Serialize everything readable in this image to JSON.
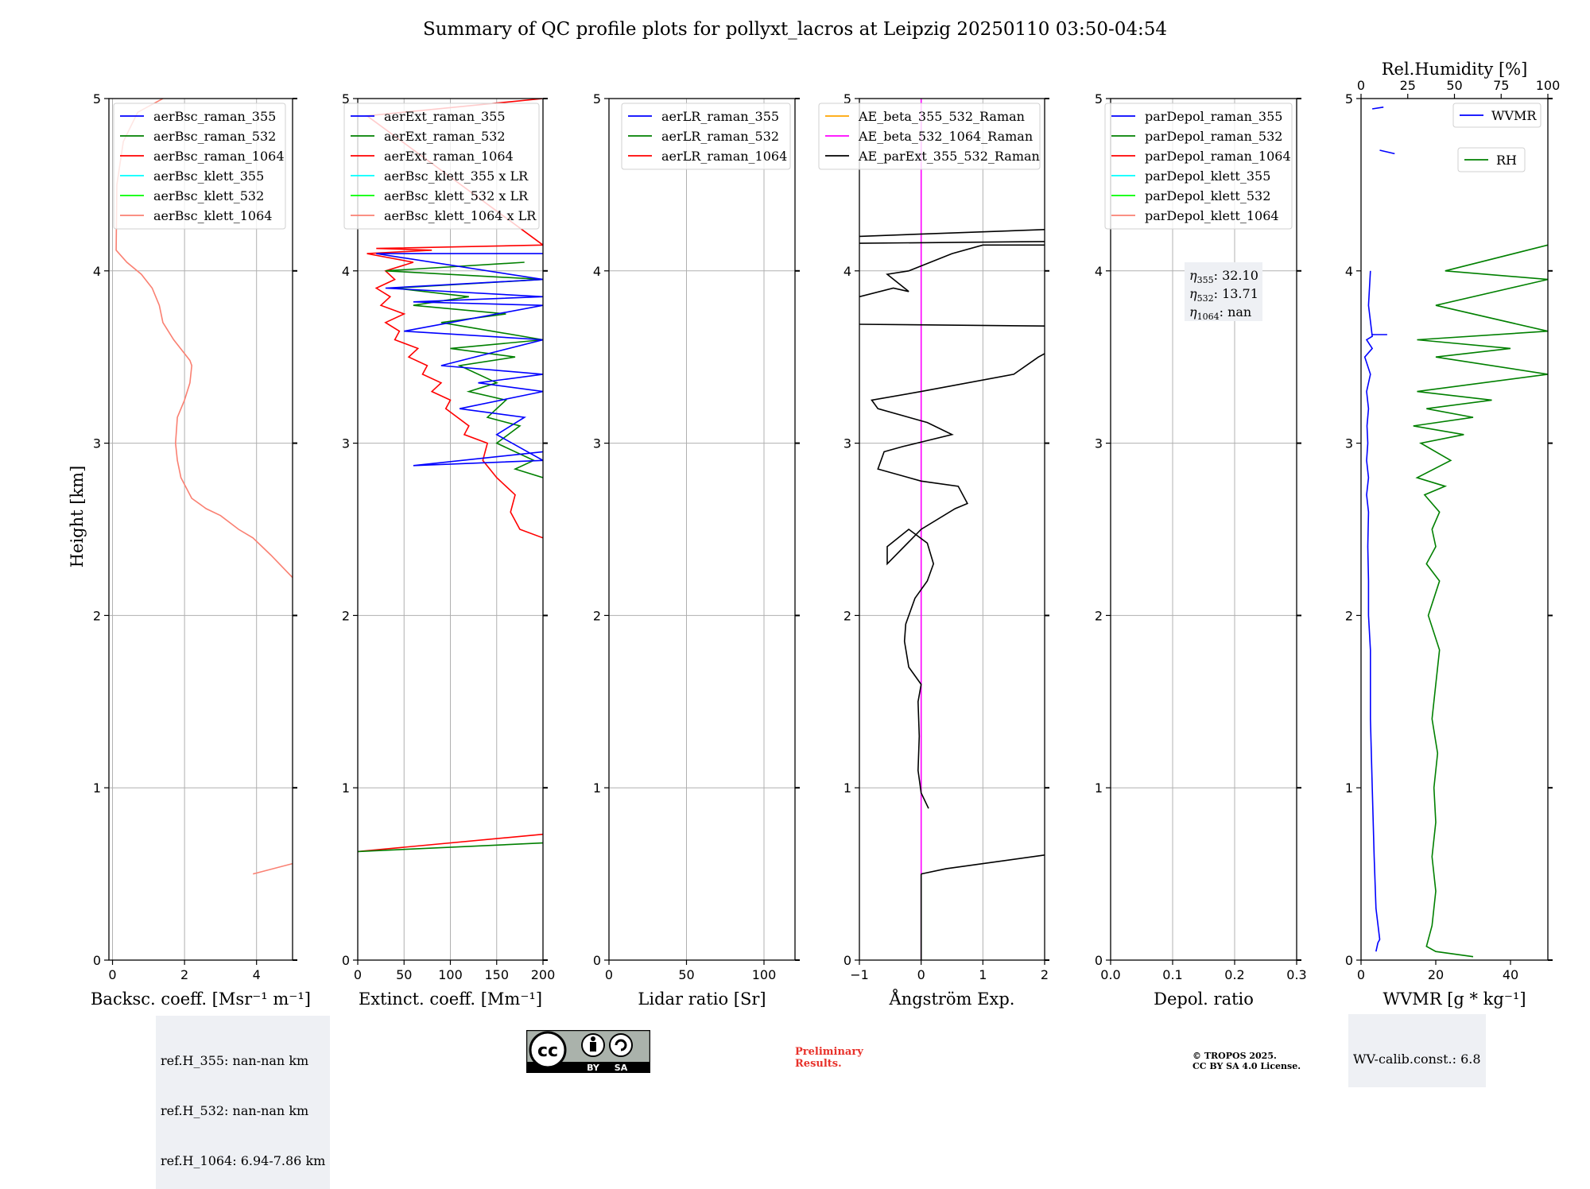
{
  "title": "Summary of QC profile plots for pollyxt_lacros at Leipzig 20250110 03:50-04:54",
  "chart_data": [
    {
      "type": "line",
      "xlabel": "Backsc. coeff. [Msr⁻¹ m⁻¹]",
      "ylabel": "Height [km]",
      "xlim": [
        -0.1,
        5
      ],
      "ylim": [
        0,
        5
      ],
      "xticks": [
        0,
        2,
        4
      ],
      "yticks": [
        0,
        1,
        2,
        3,
        4,
        5
      ],
      "grid": true,
      "legend_position": "top-right",
      "legend": [
        {
          "name": "aerBsc_raman_355",
          "color": "#0000ff"
        },
        {
          "name": "aerBsc_raman_532",
          "color": "#008000"
        },
        {
          "name": "aerBsc_raman_1064",
          "color": "#ff0000"
        },
        {
          "name": "aerBsc_klett_355",
          "color": "#00ffff"
        },
        {
          "name": "aerBsc_klett_532",
          "color": "#00ff00"
        },
        {
          "name": "aerBsc_klett_1064",
          "color": "#fa8072"
        }
      ],
      "series": [
        {
          "name": "aerBsc_klett_1064",
          "color": "#fa8072",
          "x": [
            5.0,
            4.4,
            3.9,
            3.5,
            3.0,
            2.6,
            2.2,
            1.9,
            1.8,
            1.75,
            1.8,
            2.0,
            2.15,
            2.2,
            2.15,
            1.7,
            1.4,
            1.3,
            1.1,
            0.8,
            0.4,
            0.1,
            0.12,
            0.3,
            0.7,
            1.4
          ],
          "y": [
            2.22,
            2.35,
            2.45,
            2.5,
            2.58,
            2.62,
            2.68,
            2.8,
            2.9,
            3.0,
            3.15,
            3.25,
            3.35,
            3.45,
            3.48,
            3.6,
            3.7,
            3.8,
            3.9,
            3.98,
            4.05,
            4.12,
            4.5,
            4.75,
            4.92,
            5.0
          ]
        },
        {
          "name": "aerBsc_klett_1064",
          "color": "#fa8072",
          "x": [
            3.9,
            5.0
          ],
          "y": [
            0.5,
            0.56
          ]
        }
      ]
    },
    {
      "type": "line",
      "xlabel": "Extinct. coeff. [Mm⁻¹]",
      "xlim": [
        0,
        200
      ],
      "ylim": [
        0,
        5
      ],
      "xticks": [
        0,
        50,
        100,
        150,
        200
      ],
      "yticks": [
        0,
        1,
        2,
        3,
        4,
        5
      ],
      "grid": true,
      "legend_position": "top-left",
      "legend": [
        {
          "name": "aerExt_raman_355",
          "color": "#0000ff"
        },
        {
          "name": "aerExt_raman_532",
          "color": "#008000"
        },
        {
          "name": "aerExt_raman_1064",
          "color": "#ff0000"
        },
        {
          "name": "aerBsc_klett_355 x LR",
          "color": "#00ffff"
        },
        {
          "name": "aerBsc_klett_532 x LR",
          "color": "#00ff00"
        },
        {
          "name": "aerBsc_klett_1064 x LR",
          "color": "#fa8072"
        }
      ],
      "series": [
        {
          "name": "aerExt_raman_1064",
          "color": "#ff0000",
          "x": [
            200,
            175,
            165,
            170,
            150,
            135,
            140,
            115,
            120,
            95,
            100,
            80,
            90,
            70,
            75,
            55,
            65,
            40,
            45,
            30,
            50,
            25,
            35,
            20,
            40,
            30,
            60,
            10,
            80,
            20,
            200,
            10,
            200
          ],
          "y": [
            2.45,
            2.5,
            2.6,
            2.7,
            2.8,
            2.9,
            3.0,
            3.05,
            3.1,
            3.2,
            3.25,
            3.3,
            3.35,
            3.4,
            3.45,
            3.5,
            3.55,
            3.6,
            3.65,
            3.7,
            3.75,
            3.8,
            3.85,
            3.9,
            3.95,
            4.0,
            4.05,
            4.1,
            4.12,
            4.13,
            4.15,
            4.9,
            5.0
          ]
        },
        {
          "name": "aerExt_raman_1064",
          "color": "#ff0000",
          "x": [
            0,
            200
          ],
          "y": [
            0.63,
            0.73
          ]
        },
        {
          "name": "aerExt_raman_532",
          "color": "#008000",
          "x": [
            200,
            170,
            190,
            150,
            175,
            140,
            160,
            120,
            150,
            110,
            170,
            100,
            200,
            90,
            160,
            60,
            120,
            40,
            200,
            30,
            180
          ],
          "y": [
            2.8,
            2.85,
            2.9,
            3.0,
            3.1,
            3.15,
            3.25,
            3.3,
            3.35,
            3.45,
            3.5,
            3.55,
            3.6,
            3.7,
            3.75,
            3.8,
            3.85,
            3.9,
            3.95,
            4.0,
            4.05
          ]
        },
        {
          "name": "aerExt_raman_532",
          "color": "#008000",
          "x": [
            0,
            200
          ],
          "y": [
            0.63,
            0.68
          ]
        },
        {
          "name": "aerExt_raman_355",
          "color": "#0000ff",
          "x": [
            200,
            60,
            200,
            150,
            180,
            110,
            200,
            130,
            200,
            90,
            200,
            50,
            200,
            60,
            200,
            30,
            200,
            20,
            200
          ],
          "y": [
            2.95,
            2.87,
            2.9,
            3.05,
            3.15,
            3.2,
            3.3,
            3.35,
            3.4,
            3.45,
            3.6,
            3.65,
            3.8,
            3.82,
            3.85,
            3.9,
            3.95,
            4.1,
            4.1
          ]
        }
      ]
    },
    {
      "type": "line",
      "xlabel": "Lidar ratio [Sr]",
      "xlim": [
        0,
        120
      ],
      "ylim": [
        0,
        5
      ],
      "xticks": [
        0,
        50,
        100
      ],
      "yticks": [
        0,
        1,
        2,
        3,
        4,
        5
      ],
      "grid": true,
      "legend_position": "top-right",
      "legend": [
        {
          "name": "aerLR_raman_355",
          "color": "#0000ff"
        },
        {
          "name": "aerLR_raman_532",
          "color": "#008000"
        },
        {
          "name": "aerLR_raman_1064",
          "color": "#ff0000"
        }
      ],
      "series": []
    },
    {
      "type": "line",
      "xlabel": "Ångström Exp.",
      "xlim": [
        -1,
        2
      ],
      "ylim": [
        0,
        5
      ],
      "xticks": [
        -1,
        0,
        1,
        2
      ],
      "xticklabels": [
        "−1",
        "0",
        "1",
        "2"
      ],
      "yticks": [
        0,
        1,
        2,
        3,
        4,
        5
      ],
      "grid": true,
      "legend_position": "top-right",
      "legend": [
        {
          "name": "AE_beta_355_532_Raman",
          "color": "#ffa500"
        },
        {
          "name": "AE_beta_532_1064_Raman",
          "color": "#ff00ff"
        },
        {
          "name": "AE_parExt_355_532_Raman",
          "color": "#000000"
        }
      ],
      "series": [
        {
          "name": "AE_beta_532_1064_Raman",
          "color": "#ff00ff",
          "x": [
            0,
            0
          ],
          "y": [
            0,
            5
          ]
        },
        {
          "name": "AE_parExt_355_532_Raman",
          "color": "#000000",
          "x": [
            0.12,
            0.0,
            -0.05,
            -0.03,
            -0.05,
            0.0,
            -0.2,
            -0.27,
            -0.25,
            -0.1,
            0.1,
            0.2,
            0.1,
            -0.2,
            -0.55,
            -0.55,
            0.0,
            0.55,
            0.75,
            0.6,
            0.0,
            -0.7,
            -0.6,
            -0.3,
            0.5,
            0.1,
            -0.7,
            -0.8,
            0.0,
            1.5,
            1.9,
            2.0
          ],
          "y": [
            0.88,
            0.97,
            1.1,
            1.3,
            1.5,
            1.6,
            1.7,
            1.85,
            1.95,
            2.1,
            2.2,
            2.3,
            2.42,
            2.5,
            2.4,
            2.3,
            2.5,
            2.62,
            2.65,
            2.75,
            2.78,
            2.85,
            2.95,
            2.98,
            3.05,
            3.12,
            3.2,
            3.25,
            3.3,
            3.4,
            3.5,
            3.52
          ]
        },
        {
          "name": "AE_parExt_355_532_Raman",
          "color": "#000000",
          "x": [
            -1.0,
            -0.45,
            -0.2,
            -0.55,
            -0.2,
            0.5,
            1.0,
            2.0
          ],
          "y": [
            3.85,
            3.9,
            3.88,
            3.98,
            4.0,
            4.1,
            4.15,
            4.15
          ]
        },
        {
          "name": "AE_parExt_355_532_Raman",
          "color": "#000000",
          "x": [
            -1.0,
            2.0
          ],
          "y": [
            3.69,
            3.68
          ]
        },
        {
          "name": "AE_parExt_355_532_Raman",
          "color": "#000000",
          "x": [
            -1.0,
            2.0
          ],
          "y": [
            4.2,
            4.24
          ]
        },
        {
          "name": "AE_parExt_355_532_Raman",
          "color": "#000000",
          "x": [
            -1.0,
            2.0
          ],
          "y": [
            4.16,
            4.17
          ]
        },
        {
          "name": "AE_parExt_355_532_Raman",
          "color": "#000000",
          "x": [
            0.0,
            0.4,
            1.2,
            2.0
          ],
          "y": [
            0.5,
            0.53,
            0.57,
            0.61
          ]
        },
        {
          "name": "AE_parExt_355_532_Raman",
          "color": "#000000",
          "x": [
            0.0,
            0.0
          ],
          "y": [
            0.0,
            0.5
          ]
        }
      ]
    },
    {
      "type": "line",
      "xlabel": "Depol. ratio",
      "xlim": [
        0,
        0.3
      ],
      "ylim": [
        0,
        5
      ],
      "xticks": [
        0.0,
        0.1,
        0.2,
        0.3
      ],
      "xticklabels": [
        "0.0",
        "0.1",
        "0.2",
        "0.3"
      ],
      "yticks": [
        0,
        1,
        2,
        3,
        4,
        5
      ],
      "grid": true,
      "legend_position": "top-right",
      "legend": [
        {
          "name": "parDepol_raman_355",
          "color": "#0000ff"
        },
        {
          "name": "parDepol_raman_532",
          "color": "#008000"
        },
        {
          "name": "parDepol_raman_1064",
          "color": "#ff0000"
        },
        {
          "name": "parDepol_klett_355",
          "color": "#00ffff"
        },
        {
          "name": "parDepol_klett_532",
          "color": "#00ff00"
        },
        {
          "name": "parDepol_klett_1064",
          "color": "#fa8072"
        }
      ],
      "annotations": [
        {
          "label": "η",
          "sub": "355",
          "value": ": 32.10"
        },
        {
          "label": "η",
          "sub": "532",
          "value": ": 13.71"
        },
        {
          "label": "η",
          "sub": "1064",
          "value": ": nan"
        }
      ],
      "series": []
    },
    {
      "type": "line",
      "xlabel": "WVMR [g * kg⁻¹]",
      "top_xlabel": "Rel.Humidity [%]",
      "xlim": [
        0,
        50
      ],
      "top_xlim": [
        0,
        100
      ],
      "ylim": [
        0,
        5
      ],
      "xticks": [
        0,
        20,
        40
      ],
      "top_xticks": [
        0,
        25,
        50,
        75,
        100
      ],
      "yticks": [
        0,
        1,
        2,
        3,
        4,
        5
      ],
      "grid": false,
      "legend": [
        {
          "name": "WVMR",
          "color": "#0000ff",
          "position": "top-right"
        },
        {
          "name": "RH",
          "color": "#008000",
          "position": "upper-right"
        }
      ],
      "series": [
        {
          "name": "WVMR",
          "color": "#0000ff",
          "axis": "bottom",
          "x": [
            4,
            4.5,
            5,
            4,
            3.5,
            3,
            2.5,
            2.5,
            2,
            2,
            1.8,
            2,
            1.5,
            2,
            1.5,
            1.8,
            1.6,
            2,
            1.5,
            2.5,
            1,
            3,
            1.5,
            3,
            2,
            2.5
          ],
          "y": [
            0.05,
            0.1,
            0.12,
            0.3,
            0.6,
            1.0,
            1.4,
            1.8,
            2.0,
            2.2,
            2.4,
            2.6,
            2.7,
            2.8,
            2.9,
            3.0,
            3.1,
            3.2,
            3.3,
            3.4,
            3.5,
            3.55,
            3.6,
            3.62,
            3.8,
            4.0
          ]
        },
        {
          "name": "WVMR",
          "color": "#0000ff",
          "axis": "bottom",
          "x": [
            3,
            7
          ],
          "y": [
            3.63,
            3.63
          ]
        },
        {
          "name": "WVMR",
          "color": "#0000ff",
          "axis": "bottom",
          "x": [
            3,
            6
          ],
          "y": [
            4.94,
            4.95
          ]
        },
        {
          "name": "WVMR",
          "color": "#0000ff",
          "axis": "bottom",
          "x": [
            5,
            9
          ],
          "y": [
            4.7,
            4.68
          ]
        },
        {
          "name": "RH",
          "color": "#008000",
          "axis": "top",
          "x": [
            60,
            40,
            35,
            38,
            40,
            38,
            40,
            39,
            41,
            38,
            40,
            42,
            36,
            42,
            35,
            40,
            38,
            42,
            34,
            45,
            30,
            48,
            32,
            55,
            28,
            60,
            35,
            70,
            30,
            100,
            40,
            80,
            30,
            100,
            40,
            100,
            45,
            100
          ],
          "y": [
            0.02,
            0.05,
            0.08,
            0.2,
            0.4,
            0.6,
            0.8,
            1.0,
            1.2,
            1.4,
            1.6,
            1.8,
            2.0,
            2.2,
            2.3,
            2.4,
            2.5,
            2.6,
            2.7,
            2.75,
            2.8,
            2.9,
            3.0,
            3.05,
            3.1,
            3.15,
            3.2,
            3.25,
            3.3,
            3.4,
            3.5,
            3.55,
            3.6,
            3.65,
            3.8,
            3.95,
            4.0,
            4.15
          ]
        }
      ],
      "annotations": [
        {
          "text": "WV-calib.const.: 6.8"
        }
      ]
    }
  ],
  "footer": {
    "ref_heights": [
      "ref.H_355: nan-nan km",
      "ref.H_532: nan-nan km",
      "ref.H_1064: 6.94-7.86 km"
    ],
    "wv_calib": "WV-calib.const.: 6.8",
    "preliminary": [
      "Preliminary",
      "Results."
    ],
    "copyright": [
      "© TROPOS 2025.",
      "CC BY SA 4.0 License."
    ],
    "license_badge": [
      "BY",
      "SA"
    ]
  }
}
